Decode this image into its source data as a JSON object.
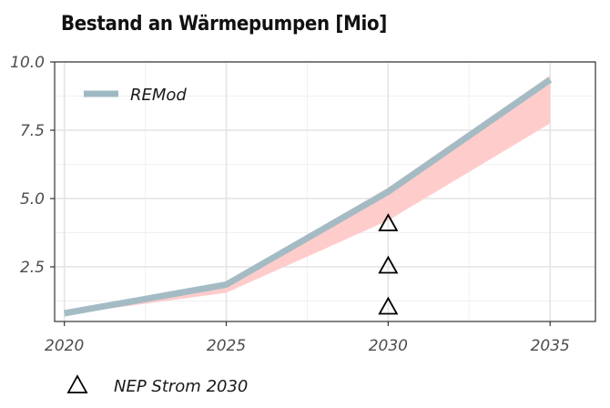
{
  "chart_data": {
    "type": "line",
    "title": "Bestand an Wärmepumpen [Mio]",
    "xlabel": "",
    "ylabel": "",
    "xlim": [
      2019.7,
      2036.4
    ],
    "ylim": [
      0.5,
      10.0
    ],
    "x_ticks": [
      2020,
      2025,
      2030,
      2035
    ],
    "y_ticks": [
      2.5,
      5.0,
      7.5,
      10.0
    ],
    "y_tick_labels": [
      "2.5",
      "5.0",
      "7.5",
      "10.0"
    ],
    "x_minor_gridlines": [
      2022.5,
      2027.5,
      2032.5
    ],
    "y_minor_gridlines": [
      1.25,
      3.75,
      6.25,
      8.75
    ],
    "grid": true,
    "series": [
      {
        "name": "REMod",
        "kind": "line",
        "color": "#9fb9c3",
        "x": [
          2020,
          2025,
          2030,
          2035
        ],
        "values": [
          0.8,
          1.85,
          5.25,
          9.35
        ]
      }
    ],
    "band": {
      "color": "#ffcccc",
      "x": [
        2020,
        2025,
        2030,
        2035
      ],
      "lower": [
        0.75,
        1.55,
        4.2,
        7.75
      ],
      "upper": [
        0.85,
        1.95,
        5.4,
        9.5
      ]
    },
    "markers": {
      "name": "NEP Strom 2030",
      "shape": "triangle-open",
      "color": "#000000",
      "x": [
        2030,
        2030,
        2030
      ],
      "y": [
        4.1,
        2.55,
        1.05
      ]
    },
    "legend": {
      "inside_position": "top-left",
      "bottom_position": "bottom-left",
      "inside_label": "REMod",
      "bottom_label": "NEP Strom 2030"
    }
  }
}
